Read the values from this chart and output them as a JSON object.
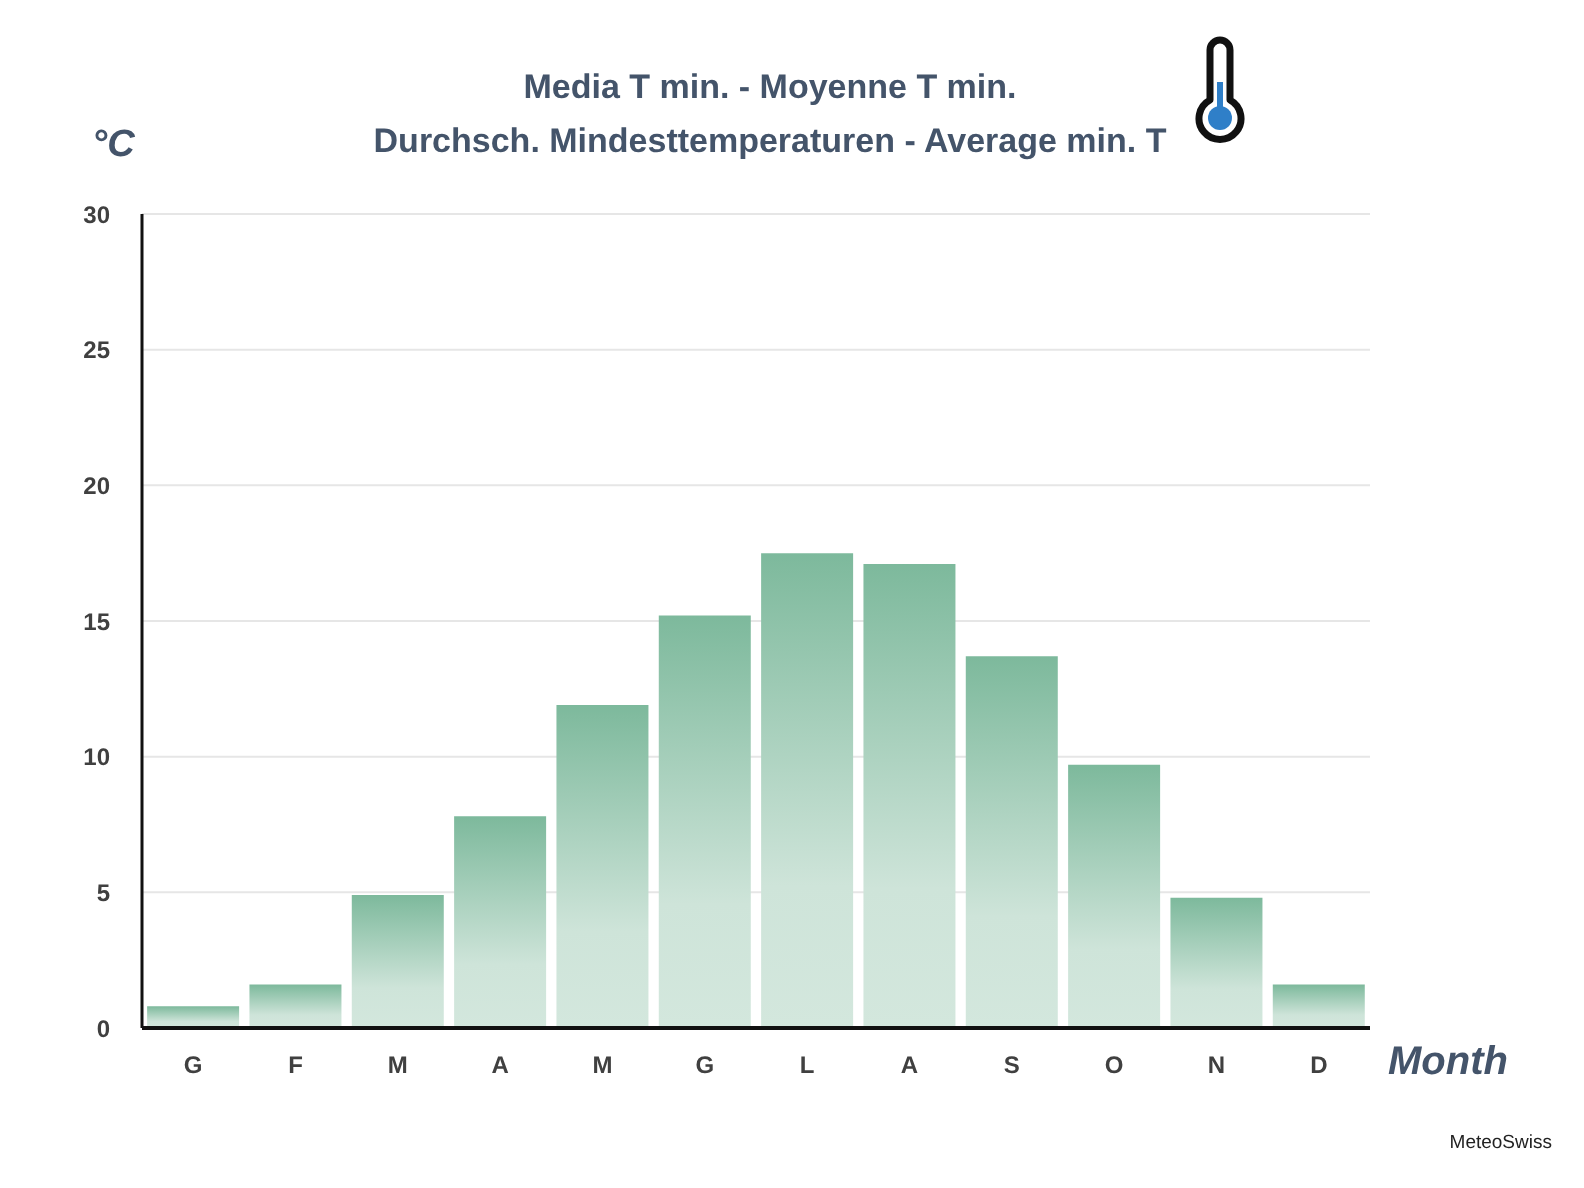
{
  "chart_data": {
    "type": "bar",
    "title": "Media T min. - Moyenne T min.",
    "subtitle": "Durchsch. Mindesttemperaturen - Average min. T",
    "xlabel": "Month",
    "ylabel": "°C",
    "annotations": [
      "MeteoSwiss"
    ],
    "categories": [
      "G",
      "F",
      "M",
      "A",
      "M",
      "G",
      "L",
      "A",
      "S",
      "O",
      "N",
      "D"
    ],
    "values": [
      0.8,
      1.6,
      4.9,
      7.8,
      11.9,
      15.2,
      17.5,
      17.1,
      13.7,
      9.7,
      4.8,
      1.6
    ],
    "color": "#7db99c",
    "ylim": [
      0,
      30
    ],
    "yticks": [
      0,
      5,
      10,
      15,
      20,
      25,
      30
    ],
    "grid": "y"
  }
}
